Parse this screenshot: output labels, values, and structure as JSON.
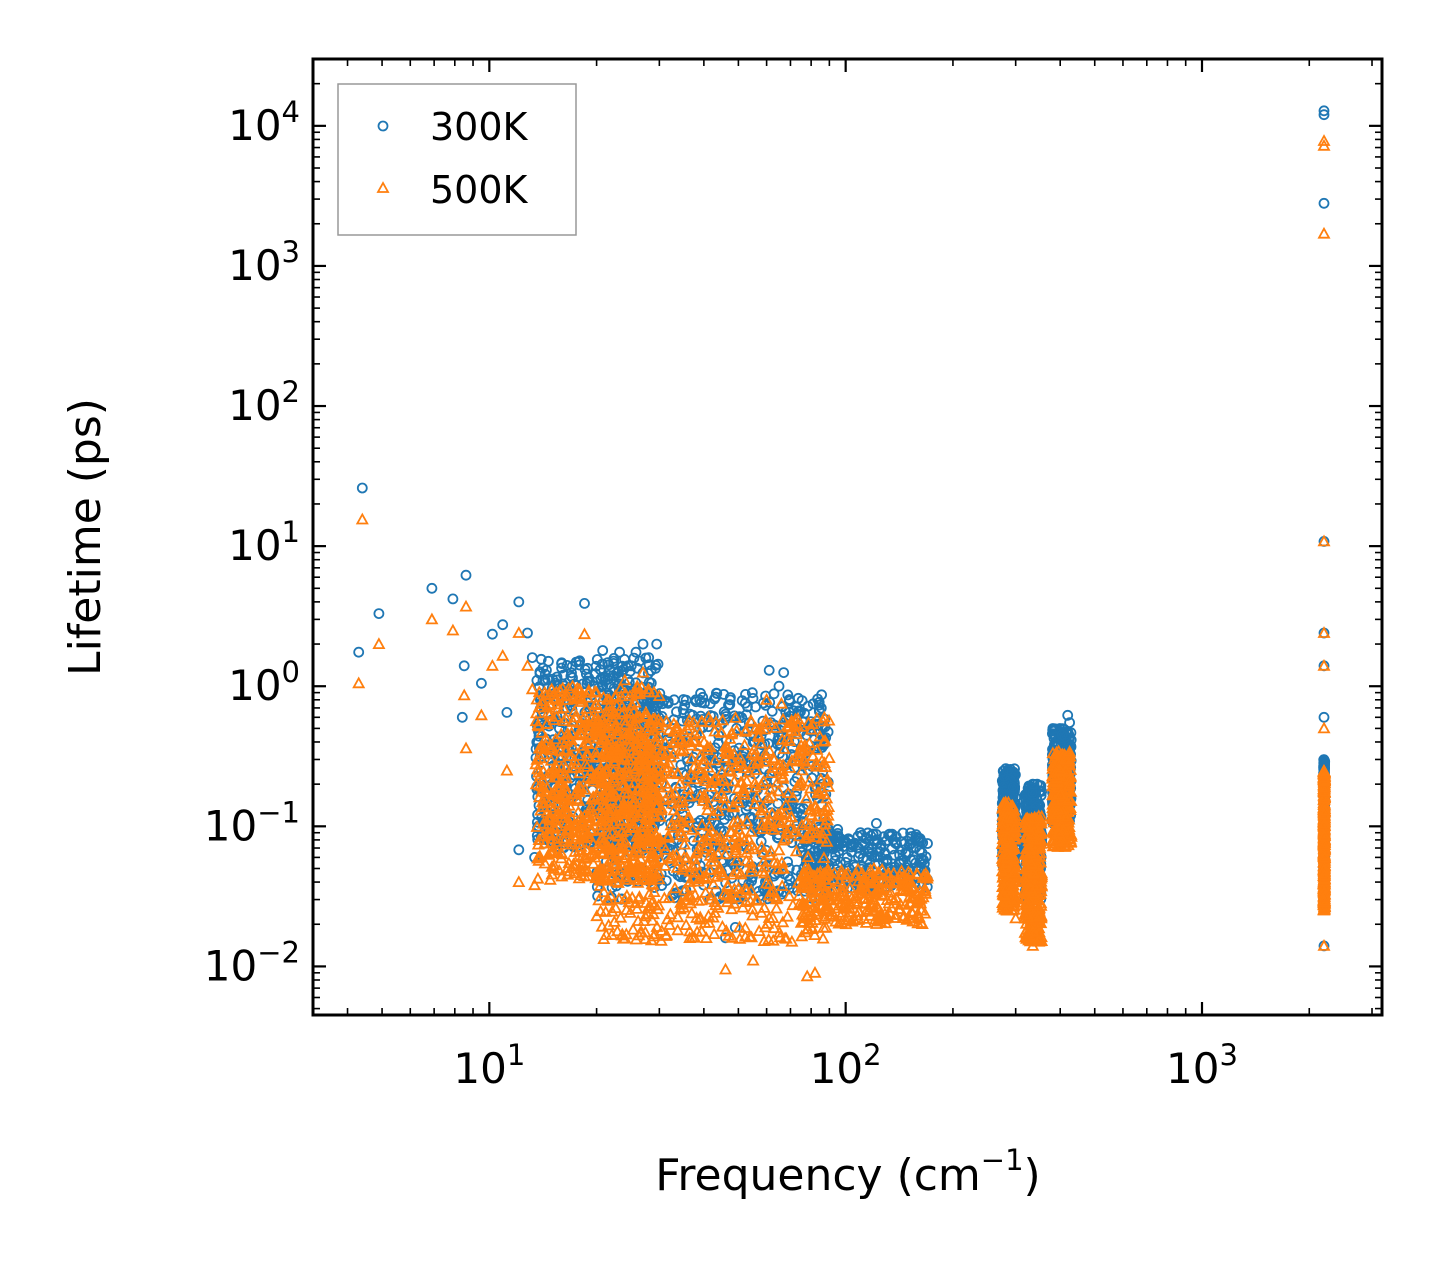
{
  "chart_data": {
    "type": "scatter",
    "title": "",
    "xlabel": "Frequency (cm",
    "xlabel_sup": "−1",
    "xlabel_suffix": ")",
    "ylabel": "Lifetime (ps)",
    "xscale": "log",
    "yscale": "log",
    "xlim": [
      3.2,
      3200
    ],
    "ylim": [
      0.0045,
      30000
    ],
    "x_ticks": [
      {
        "value": 10,
        "base": "10",
        "exp": "1"
      },
      {
        "value": 100,
        "base": "10",
        "exp": "2"
      },
      {
        "value": 1000,
        "base": "10",
        "exp": "3"
      }
    ],
    "y_ticks": [
      {
        "value": 0.01,
        "base": "10",
        "exp": "−2"
      },
      {
        "value": 0.1,
        "base": "10",
        "exp": "−1"
      },
      {
        "value": 1,
        "base": "10",
        "exp": "0"
      },
      {
        "value": 10,
        "base": "10",
        "exp": "1"
      },
      {
        "value": 100,
        "base": "10",
        "exp": "2"
      },
      {
        "value": 1000,
        "base": "10",
        "exp": "3"
      },
      {
        "value": 10000,
        "base": "10",
        "exp": "4"
      }
    ],
    "legend": {
      "placement": "top-left"
    },
    "series": [
      {
        "name": "300K",
        "marker": "circle",
        "color": "#1f77b4",
        "points": [
          [
            4.4,
            26
          ],
          [
            4.3,
            1.75
          ],
          [
            4.9,
            3.3
          ],
          [
            6.9,
            5.0
          ],
          [
            7.9,
            4.2
          ],
          [
            8.6,
            6.2
          ],
          [
            8.5,
            1.4
          ],
          [
            8.4,
            0.6
          ],
          [
            9.5,
            1.05
          ],
          [
            10.2,
            2.35
          ],
          [
            10.9,
            2.75
          ],
          [
            11.2,
            0.65
          ],
          [
            12.1,
            4.0
          ],
          [
            12.8,
            2.4
          ],
          [
            13.2,
            1.6
          ],
          [
            13.6,
            1.1
          ],
          [
            12.1,
            0.068
          ],
          [
            13.4,
            0.06
          ],
          [
            14.2,
            0.11
          ],
          [
            15.1,
            0.14
          ],
          [
            16.1,
            0.071
          ],
          [
            18.5,
            3.9
          ],
          [
            17.8,
            1.5
          ],
          [
            19.6,
            1.0
          ],
          [
            20.8,
            1.8
          ],
          [
            21.9,
            0.46
          ],
          [
            23.2,
            1.75
          ],
          [
            24.5,
            1.4
          ],
          [
            25.8,
            1.75
          ],
          [
            27.0,
            2.0
          ],
          [
            28.0,
            1.6
          ],
          [
            29.5,
            2.0
          ],
          [
            33.0,
            0.8
          ],
          [
            35.0,
            0.45
          ],
          [
            38.0,
            0.8
          ],
          [
            41.0,
            0.35
          ],
          [
            46.0,
            0.58
          ],
          [
            50.0,
            0.3
          ],
          [
            55.0,
            0.4
          ],
          [
            61.0,
            1.3
          ],
          [
            65.0,
            1.0
          ],
          [
            67.0,
            1.25
          ],
          [
            72.0,
            0.5
          ],
          [
            78.0,
            0.35
          ],
          [
            86.0,
            0.52
          ],
          [
            46.0,
            0.016
          ],
          [
            49.0,
            0.019
          ],
          [
            58.0,
            0.03
          ],
          [
            95.0,
            0.095
          ],
          [
            110.0,
            0.09
          ],
          [
            122.0,
            0.105
          ],
          [
            134.0,
            0.085
          ],
          [
            150.0,
            0.065
          ],
          [
            163.0,
            0.05
          ],
          [
            285.0,
            0.25
          ],
          [
            295.0,
            0.19
          ],
          [
            303.0,
            0.11
          ],
          [
            320.0,
            0.075
          ],
          [
            335.0,
            0.2
          ],
          [
            350.0,
            0.12
          ],
          [
            390.0,
            0.28
          ],
          [
            405.0,
            0.45
          ],
          [
            420.0,
            0.62
          ],
          [
            425.0,
            0.55
          ],
          [
            2200.0,
            12800
          ],
          [
            2200.0,
            12000
          ],
          [
            2200.0,
            2800
          ],
          [
            2200.0,
            10.8
          ],
          [
            2200.0,
            2.4
          ],
          [
            2200.0,
            1.4
          ],
          [
            2200.0,
            0.6
          ],
          [
            2200.0,
            0.014
          ]
        ],
        "bands": [
          {
            "x_range": [
              13.5,
              30
            ],
            "y_range": [
              0.07,
              1.6
            ]
          },
          {
            "x_range": [
              20,
              90
            ],
            "y_range": [
              0.03,
              0.9
            ]
          },
          {
            "x_range": [
              75,
              170
            ],
            "y_range": [
              0.035,
              0.09
            ]
          },
          {
            "x_range": [
              275,
              300
            ],
            "y_range": [
              0.05,
              0.26
            ]
          },
          {
            "x_range": [
              318,
              355
            ],
            "y_range": [
              0.03,
              0.2
            ]
          },
          {
            "x_range": [
              380,
              430
            ],
            "y_range": [
              0.1,
              0.5
            ]
          },
          {
            "x_range": [
              2195,
              2210
            ],
            "y_range": [
              0.03,
              0.3
            ]
          }
        ]
      },
      {
        "name": "500K",
        "marker": "triangle",
        "color": "#ff7f0e",
        "points": [
          [
            4.4,
            15.5
          ],
          [
            4.3,
            1.05
          ],
          [
            4.9,
            2.0
          ],
          [
            6.9,
            3.0
          ],
          [
            7.9,
            2.5
          ],
          [
            8.6,
            3.7
          ],
          [
            8.5,
            0.86
          ],
          [
            8.6,
            0.36
          ],
          [
            9.5,
            0.62
          ],
          [
            10.2,
            1.4
          ],
          [
            10.9,
            1.65
          ],
          [
            11.2,
            0.25
          ],
          [
            12.1,
            2.4
          ],
          [
            12.8,
            1.4
          ],
          [
            13.2,
            0.95
          ],
          [
            12.1,
            0.04
          ],
          [
            13.4,
            0.038
          ],
          [
            14.2,
            0.19
          ],
          [
            15.1,
            0.13
          ],
          [
            18.5,
            2.35
          ],
          [
            20.0,
            0.9
          ],
          [
            22.0,
            0.6
          ],
          [
            24.0,
            1.1
          ],
          [
            26.0,
            1.0
          ],
          [
            27.0,
            1.25
          ],
          [
            30.0,
            0.85
          ],
          [
            34.0,
            0.42
          ],
          [
            40.0,
            0.3
          ],
          [
            46.0,
            0.34
          ],
          [
            60.0,
            0.8
          ],
          [
            66.0,
            0.75
          ],
          [
            46.0,
            0.0095
          ],
          [
            55.0,
            0.011
          ],
          [
            78.0,
            0.0085
          ],
          [
            82.0,
            0.009
          ],
          [
            100.0,
            0.045
          ],
          [
            120.0,
            0.05
          ],
          [
            150.0,
            0.035
          ],
          [
            163.0,
            0.025
          ],
          [
            285.0,
            0.14
          ],
          [
            300.0,
            0.022
          ],
          [
            320.0,
            0.04
          ],
          [
            335.0,
            0.014
          ],
          [
            350.0,
            0.08
          ],
          [
            400.0,
            0.25
          ],
          [
            425.0,
            0.34
          ],
          [
            2200.0,
            7800
          ],
          [
            2200.0,
            7200
          ],
          [
            2200.0,
            1700
          ],
          [
            2200.0,
            10.8
          ],
          [
            2200.0,
            2.4
          ],
          [
            2200.0,
            1.4
          ],
          [
            2200.0,
            0.5
          ],
          [
            2200.0,
            0.014
          ]
        ],
        "bands": [
          {
            "x_range": [
              13.5,
              30
            ],
            "y_range": [
              0.04,
              1.0
            ]
          },
          {
            "x_range": [
              20,
              90
            ],
            "y_range": [
              0.015,
              0.6
            ]
          },
          {
            "x_range": [
              75,
              170
            ],
            "y_range": [
              0.02,
              0.05
            ]
          },
          {
            "x_range": [
              275,
              300
            ],
            "y_range": [
              0.025,
              0.15
            ]
          },
          {
            "x_range": [
              318,
              355
            ],
            "y_range": [
              0.015,
              0.12
            ]
          },
          {
            "x_range": [
              380,
              430
            ],
            "y_range": [
              0.07,
              0.35
            ]
          },
          {
            "x_range": [
              2195,
              2210
            ],
            "y_range": [
              0.025,
              0.25
            ]
          }
        ]
      }
    ]
  }
}
